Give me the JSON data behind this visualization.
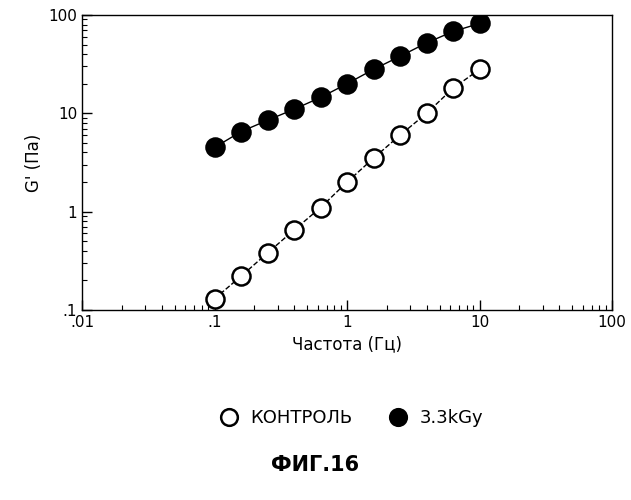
{
  "control_x": [
    0.1,
    0.158,
    0.251,
    0.398,
    0.631,
    1.0,
    1.585,
    2.512,
    3.981,
    6.31,
    10.0
  ],
  "control_y": [
    0.13,
    0.22,
    0.38,
    0.65,
    1.1,
    2.0,
    3.5,
    6.0,
    10.0,
    18.0,
    28.0
  ],
  "irrad_x": [
    0.1,
    0.158,
    0.251,
    0.398,
    0.631,
    1.0,
    1.585,
    2.512,
    3.981,
    6.31,
    10.0
  ],
  "irrad_y": [
    4.5,
    6.5,
    8.5,
    11.0,
    14.5,
    20.0,
    28.0,
    38.0,
    52.0,
    68.0,
    82.0
  ],
  "xlabel": "Частота (Гц)",
  "ylabel": "G' (Па)",
  "legend_control": "КОНТРОЛЬ",
  "legend_irrad": "3.3kGy",
  "fig_label": "ФИГ.16",
  "xlim": [
    0.01,
    100
  ],
  "ylim": [
    0.1,
    100
  ],
  "bg_color": "#ffffff",
  "line_color": "#000000"
}
